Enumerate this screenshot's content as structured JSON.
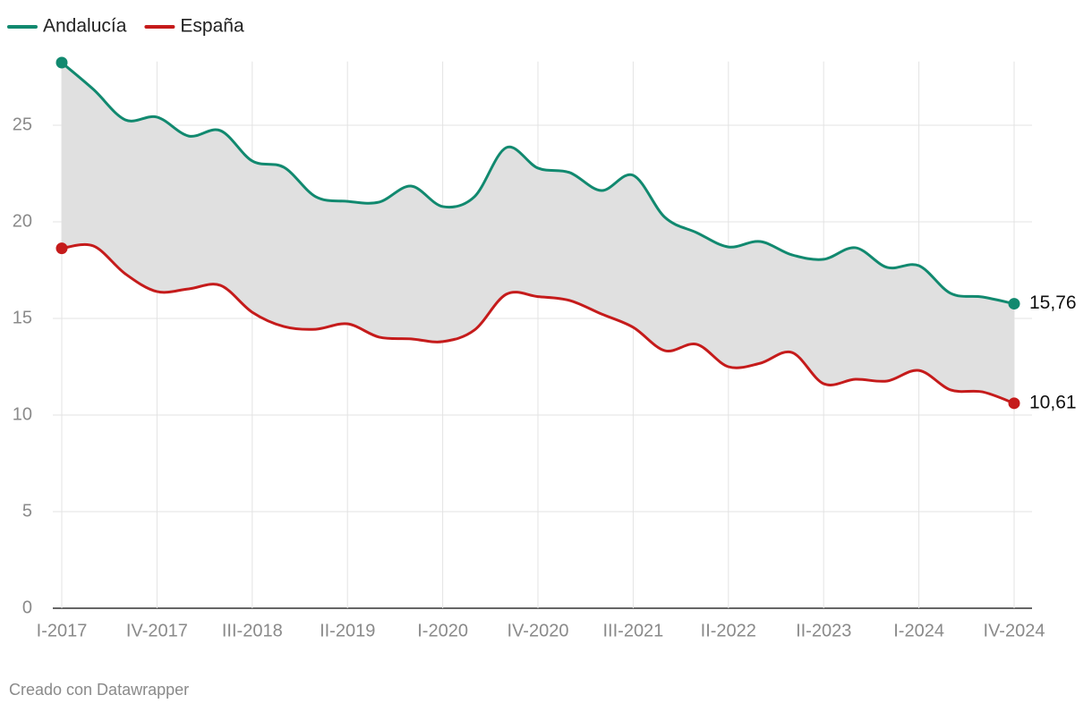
{
  "chart_data": {
    "type": "line",
    "categories": [
      "I-2017",
      null,
      null,
      "IV-2017",
      null,
      null,
      "III-2018",
      null,
      null,
      "II-2019",
      null,
      null,
      "I-2020",
      null,
      null,
      "IV-2020",
      null,
      null,
      "III-2021",
      null,
      null,
      "II-2022",
      null,
      null,
      "II-2023",
      null,
      null,
      "I-2024",
      null,
      null,
      "IV-2024"
    ],
    "series": [
      {
        "name": "Andalucía",
        "color": "#11896f",
        "values": [
          28.24,
          26.85,
          25.28,
          25.42,
          24.44,
          24.72,
          23.15,
          22.82,
          21.3,
          21.06,
          21.02,
          21.85,
          20.79,
          21.3,
          23.84,
          22.78,
          22.55,
          21.62,
          22.41,
          20.23,
          19.44,
          18.7,
          18.98,
          18.29,
          18.06,
          18.66,
          17.64,
          17.73,
          16.3,
          16.11,
          15.76
        ],
        "value_labels": [
          null,
          null,
          null,
          null,
          null,
          null,
          null,
          null,
          null,
          null,
          null,
          null,
          null,
          null,
          null,
          null,
          null,
          null,
          null,
          null,
          null,
          null,
          null,
          null,
          null,
          null,
          null,
          null,
          null,
          null,
          "15,76"
        ]
      },
      {
        "name": "España",
        "color": "#c51b1b",
        "values": [
          18.63,
          18.75,
          17.31,
          16.39,
          16.53,
          16.71,
          15.32,
          14.58,
          14.44,
          14.72,
          14.03,
          13.94,
          13.8,
          14.4,
          16.25,
          16.13,
          15.93,
          15.23,
          14.54,
          13.33,
          13.66,
          12.5,
          12.68,
          13.24,
          11.62,
          11.85,
          11.76,
          12.31,
          11.3,
          11.2,
          10.61
        ],
        "value_labels": [
          null,
          null,
          null,
          null,
          null,
          null,
          null,
          null,
          null,
          null,
          null,
          null,
          null,
          null,
          null,
          null,
          null,
          null,
          null,
          null,
          null,
          null,
          null,
          null,
          null,
          null,
          null,
          null,
          null,
          null,
          "10,61"
        ]
      }
    ],
    "ylim": [
      0,
      28.3
    ],
    "yticks": [
      0,
      5,
      10,
      15,
      20,
      25
    ],
    "grid": true,
    "area_color": "#e0e0e0",
    "footer": "Creado con Datawrapper"
  }
}
